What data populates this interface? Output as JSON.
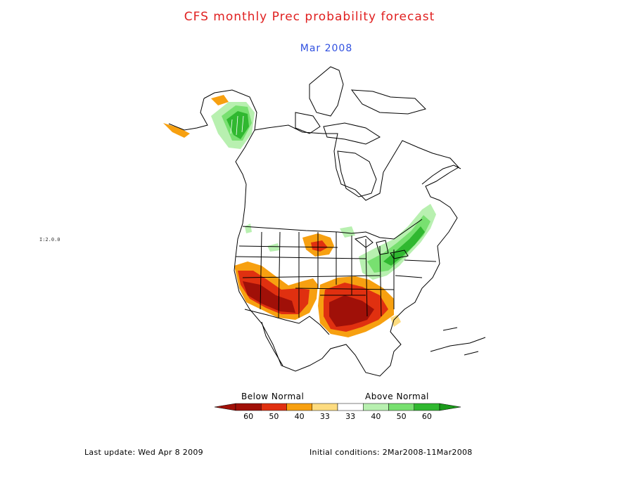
{
  "title": "CFS monthly Prec probability forecast",
  "subtitle": "Mar 2008",
  "legend": {
    "below_label": "Below Normal",
    "above_label": "Above Normal",
    "bins": [
      {
        "label": "60",
        "color": "#a01008"
      },
      {
        "label": "50",
        "color": "#e03010"
      },
      {
        "label": "40",
        "color": "#f7a010"
      },
      {
        "label": "33",
        "color": "#fddc80"
      },
      {
        "label": "33",
        "color": "#ffffff"
      },
      {
        "label": "40",
        "color": "#b8f0b0"
      },
      {
        "label": "50",
        "color": "#78e070"
      },
      {
        "label": "60",
        "color": "#30b830"
      }
    ],
    "end_colors": {
      "low": "#a01008",
      "high": "#1a9a1a"
    }
  },
  "map_regions": {
    "below_normal": [
      "Southwest US",
      "Southern Plains",
      "Gulf Coast",
      "Northern Plains (Dakotas)",
      "Southern Alaska coast"
    ],
    "above_normal": [
      "Northeast US",
      "Ohio Valley",
      "Great Lakes",
      "Northern Alaska"
    ]
  },
  "footer": {
    "last_update": "Last update: Wed Apr 8 2009",
    "initial_conditions": "Initial conditions: 2Mar2008-11Mar2008"
  },
  "side_mark": "I:2.0.0"
}
